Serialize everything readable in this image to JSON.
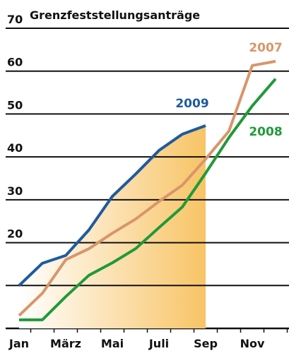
{
  "chart_data": {
    "type": "line",
    "title": "Grenzfeststellungsanträge",
    "categories": [
      "Jan",
      null,
      "März",
      null,
      "Mai",
      null,
      "Juli",
      null,
      "Sep",
      null,
      "Nov",
      null
    ],
    "series": [
      {
        "name": "2009",
        "color": "#1f5a9e",
        "area_gradient": [
          "#ffffff",
          "#f8c466"
        ],
        "values": [
          10,
          15.2,
          17,
          23,
          30.8,
          36,
          41.5,
          45.3,
          47.3,
          null,
          null,
          null
        ]
      },
      {
        "name": "2007",
        "color": "#d9956a",
        "values": [
          3,
          8.2,
          16,
          18.6,
          22.2,
          25.5,
          29.6,
          33.4,
          39.5,
          46,
          61.3,
          62.3
        ]
      },
      {
        "name": "2008",
        "color": "#1f9a3a",
        "values": [
          2,
          2,
          7.4,
          12.4,
          15.3,
          18.6,
          23.5,
          28.3,
          36.2,
          44.5,
          51.9,
          58.2
        ]
      }
    ],
    "ylim": [
      0,
      70
    ],
    "yticks": [
      20,
      30,
      40,
      50,
      60,
      70
    ],
    "minor_yticks": [
      10
    ],
    "grid": true
  }
}
